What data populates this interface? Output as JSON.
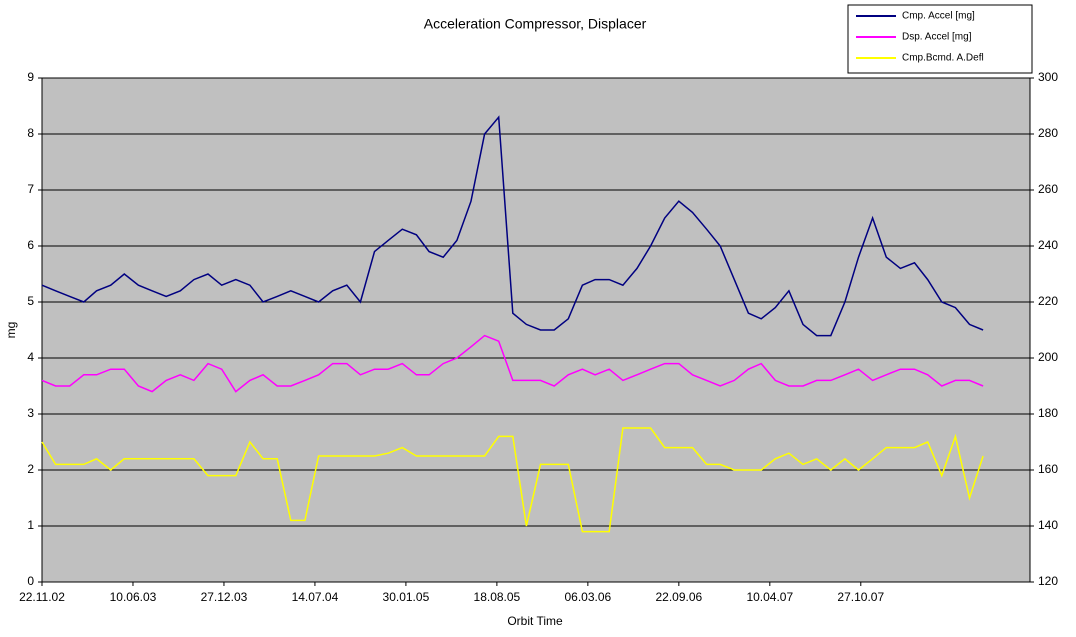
{
  "chart_data": {
    "type": "line",
    "title": "Acceleration Compressor, Displacer",
    "xlabel": "Orbit Time",
    "ylabel": "mg",
    "x": [
      "22.11.02",
      "22.12.02",
      "22.01.03",
      "22.02.03",
      "22.03.03",
      "22.04.03",
      "22.05.03",
      "22.06.03",
      "22.07.03",
      "22.08.03",
      "22.09.03",
      "22.10.03",
      "22.11.03",
      "22.12.03",
      "22.01.04",
      "22.02.04",
      "22.03.04",
      "22.04.04",
      "22.05.04",
      "22.06.04",
      "22.07.04",
      "22.08.04",
      "22.09.04",
      "22.10.04",
      "22.11.04",
      "22.12.04",
      "22.01.05",
      "22.02.05",
      "22.03.05",
      "22.04.05",
      "22.05.05",
      "22.06.05",
      "22.07.05",
      "22.08.05",
      "22.09.05",
      "22.10.05",
      "22.11.05",
      "22.12.05",
      "22.01.06",
      "22.02.06",
      "22.03.06",
      "22.04.06",
      "22.05.06",
      "22.06.06",
      "22.07.06",
      "22.08.06",
      "22.09.06",
      "22.10.06",
      "22.11.06",
      "22.12.06",
      "22.01.07",
      "22.02.07",
      "22.03.07",
      "22.04.07",
      "22.05.07",
      "22.06.07",
      "22.07.07",
      "22.08.07",
      "22.09.07",
      "22.10.07",
      "22.11.07",
      "22.12.07",
      "22.01.08",
      "22.02.08",
      "22.03.08",
      "22.04.08",
      "22.05.08",
      "22.06.08",
      "22.07.08"
    ],
    "xlim": [
      "22.11.02",
      "02.11.08"
    ],
    "xticks": [
      "22.11.02",
      "10.06.03",
      "27.12.03",
      "14.07.04",
      "30.01.05",
      "18.08.05",
      "06.03.06",
      "22.09.06",
      "10.04.07",
      "27.10.07"
    ],
    "ylim": [
      0,
      9
    ],
    "yticks": [
      0,
      1,
      2,
      3,
      4,
      5,
      6,
      7,
      8,
      9
    ],
    "y2lim": [
      120,
      300
    ],
    "y2ticks": [
      120,
      140,
      160,
      180,
      200,
      220,
      240,
      260,
      280,
      300
    ],
    "grid": true,
    "legend": "upper right",
    "series": [
      {
        "name": "Cmp. Accel [mg]",
        "color": "#000080",
        "values": [
          5.3,
          5.2,
          5.1,
          5.0,
          5.2,
          5.3,
          5.5,
          5.3,
          5.2,
          5.1,
          5.2,
          5.4,
          5.5,
          5.3,
          5.4,
          5.3,
          5.0,
          5.1,
          5.2,
          5.1,
          5.0,
          5.2,
          5.3,
          5.0,
          5.9,
          6.1,
          6.3,
          6.2,
          5.9,
          5.8,
          6.1,
          6.8,
          8.0,
          8.3,
          4.8,
          4.6,
          4.5,
          4.5,
          4.7,
          5.3,
          5.4,
          5.4,
          5.3,
          5.6,
          6.0,
          6.5,
          6.8,
          6.6,
          6.3,
          6.0,
          5.4,
          4.8,
          4.7,
          4.9,
          5.2,
          4.6,
          4.4,
          4.4,
          5.0,
          5.8,
          6.5,
          5.8,
          5.6,
          5.7,
          5.4,
          5.0,
          4.9,
          4.6,
          4.5
        ]
      },
      {
        "name": "Dsp. Accel [mg]",
        "color": "#ff00ff",
        "values": [
          3.6,
          3.5,
          3.5,
          3.7,
          3.7,
          3.8,
          3.8,
          3.5,
          3.4,
          3.6,
          3.7,
          3.6,
          3.9,
          3.8,
          3.4,
          3.6,
          3.7,
          3.5,
          3.5,
          3.6,
          3.7,
          3.9,
          3.9,
          3.7,
          3.8,
          3.8,
          3.9,
          3.7,
          3.7,
          3.9,
          4.0,
          4.2,
          4.4,
          4.3,
          3.6,
          3.6,
          3.6,
          3.5,
          3.7,
          3.8,
          3.7,
          3.8,
          3.6,
          3.7,
          3.8,
          3.9,
          3.9,
          3.7,
          3.6,
          3.5,
          3.6,
          3.8,
          3.9,
          3.6,
          3.5,
          3.5,
          3.6,
          3.6,
          3.7,
          3.8,
          3.6,
          3.7,
          3.8,
          3.8,
          3.7,
          3.5,
          3.6,
          3.6,
          3.5
        ]
      },
      {
        "name": "Cmp.Bcmd. A.Defl",
        "color": "#ffff00",
        "axis": "y2",
        "values": [
          170,
          162,
          162,
          162,
          164,
          160,
          164,
          164,
          164,
          164,
          164,
          164,
          158,
          158,
          158,
          170,
          164,
          164,
          142,
          142,
          165,
          165,
          165,
          165,
          165,
          166,
          168,
          165,
          165,
          165,
          165,
          165,
          165,
          172,
          172,
          140,
          162,
          162,
          162,
          138,
          138,
          138,
          175,
          175,
          175,
          168,
          168,
          168,
          162,
          162,
          160,
          160,
          160,
          164,
          166,
          162,
          164,
          160,
          164,
          160,
          164,
          168,
          168,
          168,
          170,
          158,
          172,
          150,
          165
        ]
      }
    ]
  }
}
